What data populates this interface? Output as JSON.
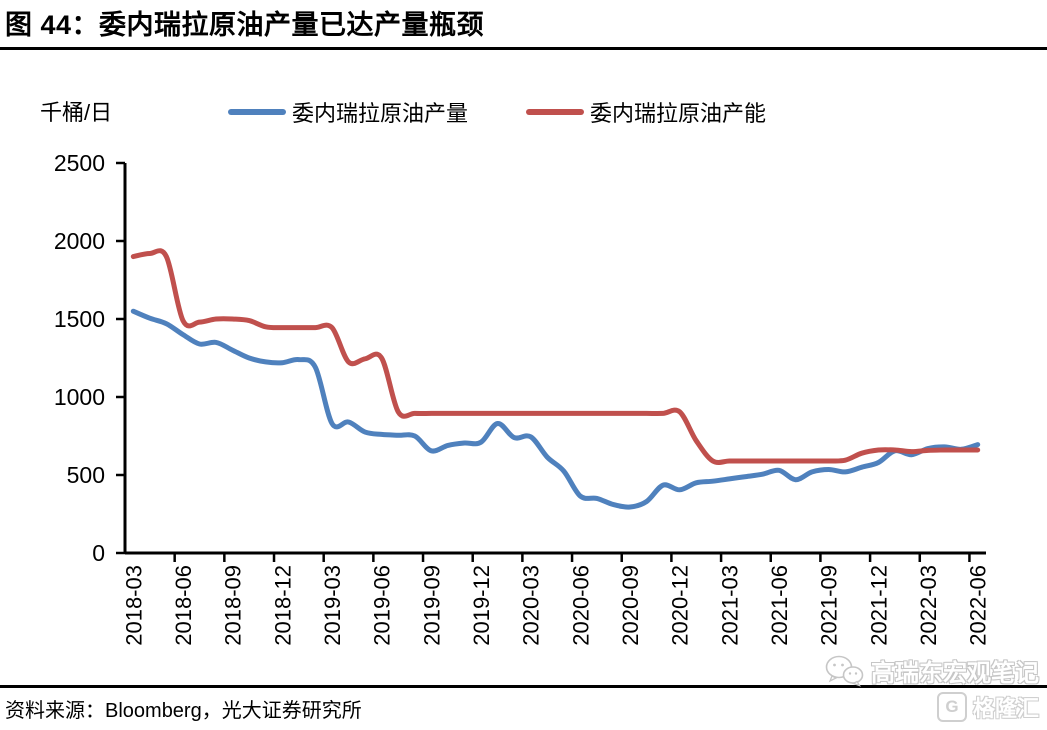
{
  "header": {
    "title": "图 44：委内瑞拉原油产量已达产量瓶颈"
  },
  "chart_data": {
    "type": "line",
    "title": "委内瑞拉原油产量已达产量瓶颈",
    "unit_label": "千桶/日",
    "xlabel": "",
    "ylabel": "千桶/日",
    "ylim": [
      0,
      2500
    ],
    "yticks": [
      0,
      500,
      1000,
      1500,
      2000,
      2500
    ],
    "grid": false,
    "legend_position": "top",
    "xtick_label_every": 3,
    "x": [
      "2018-03",
      "2018-04",
      "2018-05",
      "2018-06",
      "2018-07",
      "2018-08",
      "2018-09",
      "2018-10",
      "2018-11",
      "2018-12",
      "2019-01",
      "2019-02",
      "2019-03",
      "2019-04",
      "2019-05",
      "2019-06",
      "2019-07",
      "2019-08",
      "2019-09",
      "2019-10",
      "2019-11",
      "2019-12",
      "2020-01",
      "2020-02",
      "2020-03",
      "2020-04",
      "2020-05",
      "2020-06",
      "2020-07",
      "2020-08",
      "2020-09",
      "2020-10",
      "2020-11",
      "2020-12",
      "2021-01",
      "2021-02",
      "2021-03",
      "2021-04",
      "2021-05",
      "2021-06",
      "2021-07",
      "2021-08",
      "2021-09",
      "2021-10",
      "2021-11",
      "2021-12",
      "2022-01",
      "2022-02",
      "2022-03",
      "2022-04",
      "2022-05",
      "2022-06"
    ],
    "series": [
      {
        "name": "委内瑞拉原油产量",
        "color": "#4F81BD",
        "values": [
          1550,
          1505,
          1470,
          1400,
          1340,
          1350,
          1300,
          1250,
          1225,
          1220,
          1240,
          1190,
          830,
          840,
          775,
          760,
          755,
          750,
          655,
          690,
          705,
          710,
          830,
          740,
          745,
          615,
          525,
          365,
          350,
          310,
          295,
          330,
          435,
          405,
          450,
          460,
          475,
          490,
          505,
          530,
          470,
          520,
          535,
          520,
          550,
          580,
          655,
          630,
          670,
          680,
          665,
          695
        ]
      },
      {
        "name": "委内瑞拉原油产能",
        "color": "#C0504D",
        "values": [
          1900,
          1920,
          1900,
          1490,
          1480,
          1500,
          1500,
          1490,
          1450,
          1445,
          1445,
          1445,
          1445,
          1225,
          1245,
          1250,
          905,
          895,
          895,
          895,
          895,
          895,
          895,
          895,
          895,
          895,
          895,
          895,
          895,
          895,
          895,
          895,
          895,
          905,
          720,
          590,
          590,
          590,
          590,
          590,
          590,
          590,
          590,
          595,
          640,
          660,
          660,
          650,
          658,
          660,
          660,
          660
        ]
      }
    ]
  },
  "footer": {
    "source": "资料来源：Bloomberg，光大证券研究所"
  },
  "watermark": {
    "account": "高瑞东宏观笔记",
    "brand": "格隆汇",
    "brand_letter": "G"
  }
}
